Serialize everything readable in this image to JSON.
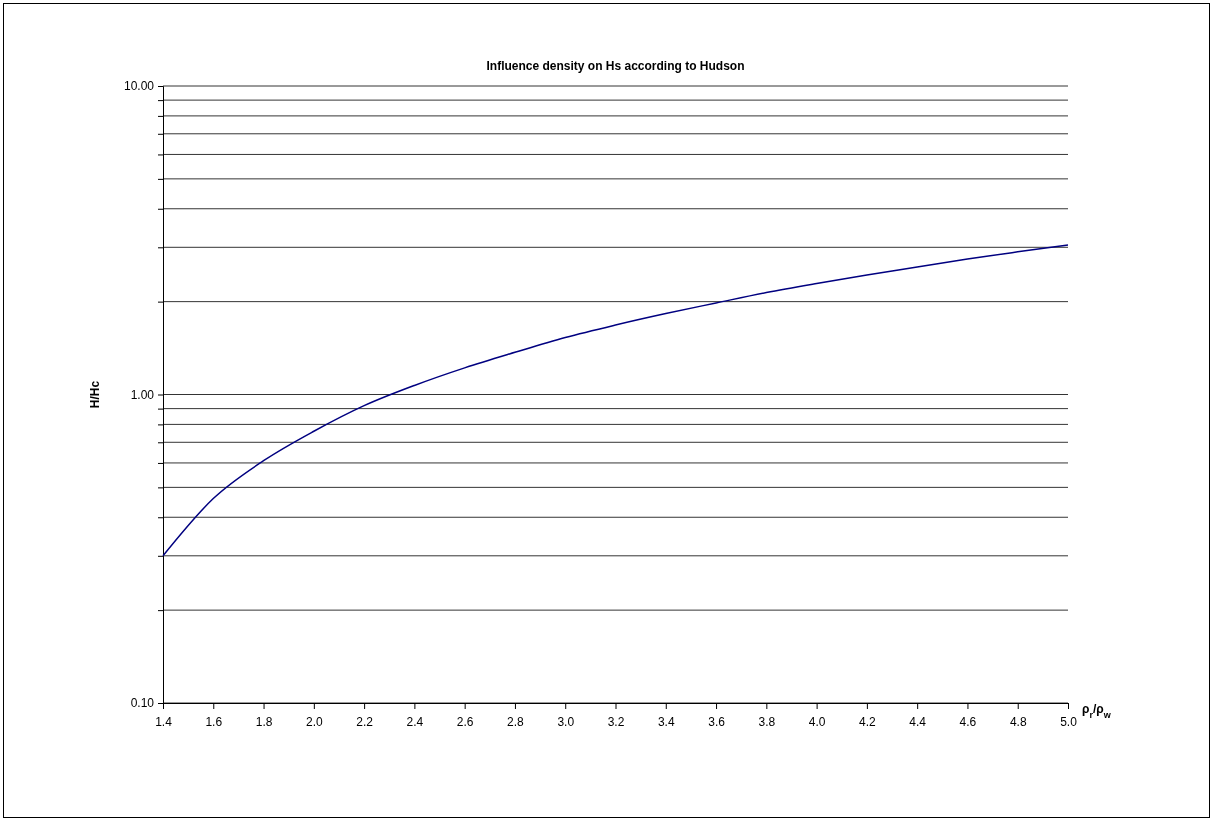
{
  "chart_data": {
    "type": "line",
    "title": "Influence density on Hs according to Hudson",
    "xlabel": "ρ$_{r}$/ρ$_{w}$",
    "ylabel": "H/Hc",
    "x": [
      1.4,
      1.6,
      1.8,
      2.0,
      2.2,
      2.4,
      2.6,
      2.8,
      3.0,
      3.2,
      3.4,
      3.6,
      3.8,
      4.0,
      4.2,
      4.4,
      4.6,
      4.8,
      5.0
    ],
    "series": [
      {
        "color": "#000080",
        "values": [
          0.3,
          0.46,
          0.61,
          0.76,
          0.92,
          1.07,
          1.22,
          1.37,
          1.53,
          1.68,
          1.83,
          1.98,
          2.14,
          2.29,
          2.44,
          2.59,
          2.75,
          2.9,
          3.05
        ]
      }
    ],
    "xlim": [
      1.4,
      5.0
    ],
    "xticks": [
      {
        "value": 1.4,
        "label": "1.4"
      },
      {
        "value": 1.6,
        "label": "1.6"
      },
      {
        "value": 1.8,
        "label": "1.8"
      },
      {
        "value": 2.0,
        "label": "2.0"
      },
      {
        "value": 2.2,
        "label": "2.2"
      },
      {
        "value": 2.4,
        "label": "2.4"
      },
      {
        "value": 2.6,
        "label": "2.6"
      },
      {
        "value": 2.8,
        "label": "2.8"
      },
      {
        "value": 3.0,
        "label": "3.0"
      },
      {
        "value": 3.2,
        "label": "3.2"
      },
      {
        "value": 3.4,
        "label": "3.4"
      },
      {
        "value": 3.6,
        "label": "3.6"
      },
      {
        "value": 3.8,
        "label": "3.8"
      },
      {
        "value": 4.0,
        "label": "4.0"
      },
      {
        "value": 4.2,
        "label": "4.2"
      },
      {
        "value": 4.4,
        "label": "4.4"
      },
      {
        "value": 4.6,
        "label": "4.6"
      },
      {
        "value": 4.8,
        "label": "4.8"
      },
      {
        "value": 5.0,
        "label": "5.0"
      }
    ],
    "ylim": [
      0.1,
      10
    ],
    "yticks": [
      {
        "value": 0.1,
        "label": "0.10"
      },
      {
        "value": 0.2,
        "label": null
      },
      {
        "value": 0.3,
        "label": null
      },
      {
        "value": 0.4,
        "label": null
      },
      {
        "value": 0.5,
        "label": null
      },
      {
        "value": 0.6,
        "label": null
      },
      {
        "value": 0.7,
        "label": null
      },
      {
        "value": 0.8,
        "label": null
      },
      {
        "value": 0.9,
        "label": null
      },
      {
        "value": 1,
        "label": "1.00"
      },
      {
        "value": 2,
        "label": null
      },
      {
        "value": 3,
        "label": null
      },
      {
        "value": 4,
        "label": null
      },
      {
        "value": 5,
        "label": null
      },
      {
        "value": 6,
        "label": null
      },
      {
        "value": 7,
        "label": null
      },
      {
        "value": 8,
        "label": null
      },
      {
        "value": 9,
        "label": null
      },
      {
        "value": 10,
        "label": "10.00"
      }
    ],
    "log": "y",
    "grid": "y",
    "marker": "none",
    "line_style": "solid"
  }
}
